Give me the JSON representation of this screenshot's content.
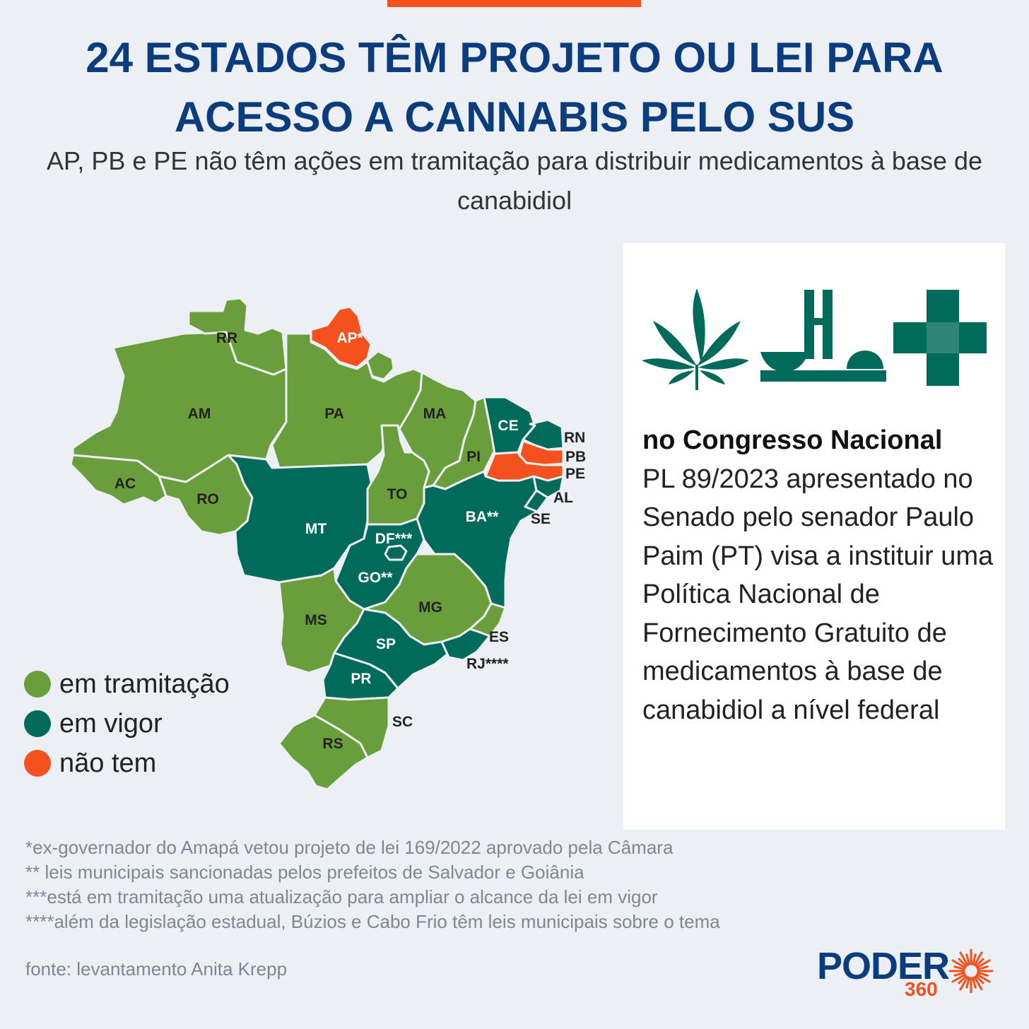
{
  "title": "24 ESTADOS TÊM PROJETO OU LEI PARA ACESSO A CANNABIS PELO SUS",
  "subtitle": "AP, PB e PE não têm ações em tramitação para distribuir medicamentos à base de canabidiol",
  "colors": {
    "em_tramitacao": "#6a9e3c",
    "em_vigor": "#006b5a",
    "nao_tem": "#f4511e",
    "title": "#0b3d7e",
    "background": "#eceff3"
  },
  "legend": [
    {
      "label": "em tramitação",
      "status": "em_tramitacao"
    },
    {
      "label": "em vigor",
      "status": "em_vigor"
    },
    {
      "label": "não tem",
      "status": "nao_tem"
    }
  ],
  "states": [
    {
      "label": "RR",
      "status": "em_tramitacao"
    },
    {
      "label": "AP*",
      "status": "nao_tem"
    },
    {
      "label": "AM",
      "status": "em_tramitacao"
    },
    {
      "label": "PA",
      "status": "em_tramitacao"
    },
    {
      "label": "MA",
      "status": "em_tramitacao"
    },
    {
      "label": "CE",
      "status": "em_vigor"
    },
    {
      "label": "RN",
      "status": "em_vigor"
    },
    {
      "label": "PB",
      "status": "nao_tem"
    },
    {
      "label": "PE",
      "status": "nao_tem"
    },
    {
      "label": "AL",
      "status": "em_vigor"
    },
    {
      "label": "SE",
      "status": "em_vigor"
    },
    {
      "label": "PI",
      "status": "em_tramitacao"
    },
    {
      "label": "AC",
      "status": "em_tramitacao"
    },
    {
      "label": "RO",
      "status": "em_tramitacao"
    },
    {
      "label": "TO",
      "status": "em_tramitacao"
    },
    {
      "label": "BA**",
      "status": "em_vigor"
    },
    {
      "label": "MT",
      "status": "em_vigor"
    },
    {
      "label": "DF***",
      "status": "em_vigor"
    },
    {
      "label": "GO**",
      "status": "em_vigor"
    },
    {
      "label": "MG",
      "status": "em_tramitacao"
    },
    {
      "label": "ES",
      "status": "em_tramitacao"
    },
    {
      "label": "MS",
      "status": "em_tramitacao"
    },
    {
      "label": "SP",
      "status": "em_vigor"
    },
    {
      "label": "RJ****",
      "status": "em_vigor"
    },
    {
      "label": "PR",
      "status": "em_vigor"
    },
    {
      "label": "SC",
      "status": "em_tramitacao"
    },
    {
      "label": "RS",
      "status": "em_tramitacao"
    }
  ],
  "panel": {
    "icons": [
      "cannabis-leaf-icon",
      "national-congress-icon",
      "health-cross-icon"
    ],
    "heading": "no Congresso Nacional",
    "text": "PL 89/2023 apresentado no Senado pelo senador Paulo Paim (PT) visa a instituir uma Política Nacional de Fornecimento Gratuito de medicamentos à base de canabidiol a nível federal"
  },
  "footnotes": [
    "*ex-governador do Amapá vetou projeto de lei 169/2022 aprovado pela Câmara",
    "** leis municipais sancionadas pelos prefeitos de Salvador e Goiânia",
    "***está em tramitação uma atualização para ampliar o alcance da lei em vigor",
    "****além da legislação estadual, Búzios e Cabo Frio têm leis municipais sobre o tema"
  ],
  "source": "fonte: levantamento Anita Krepp",
  "logo": {
    "word": "PODER",
    "number": "360"
  }
}
